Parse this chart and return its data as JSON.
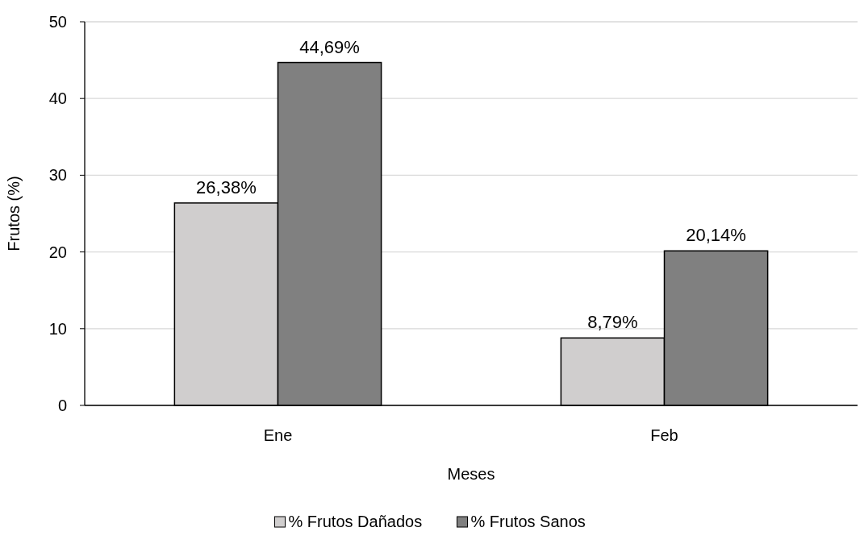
{
  "chart_data": {
    "type": "bar",
    "xlabel": "Meses",
    "ylabel": "Frutos  (%)",
    "categories": [
      "Ene",
      "Feb"
    ],
    "series": [
      {
        "name": "% Frutos Dañados",
        "color": "#d0cece",
        "values": [
          26.38,
          8.79
        ],
        "value_labels": [
          "26,38%",
          "8,79%"
        ]
      },
      {
        "name": "% Frutos Sanos",
        "color": "#808080",
        "values": [
          44.69,
          20.14
        ],
        "value_labels": [
          "44,69%",
          "20,14%"
        ]
      }
    ],
    "ylim": [
      0,
      50
    ],
    "yticks": [
      0,
      10,
      20,
      30,
      40,
      50
    ],
    "grid": "y",
    "legend": "bottom"
  }
}
